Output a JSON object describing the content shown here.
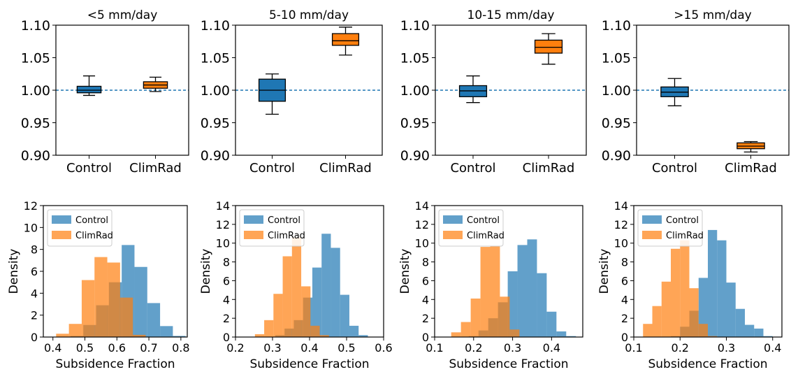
{
  "colors": {
    "control": "#1f77b4",
    "climrad": "#ff7f0e",
    "control_hist": "#1f77b4",
    "climrad_hist": "#ff7f0e",
    "refline": "#1f77b4",
    "median": "#000000"
  },
  "chart_data": [
    {
      "type": "box",
      "title": "<5 mm/day",
      "categories": [
        "Control",
        "ClimRad"
      ],
      "ylim": [
        0.9,
        1.1
      ],
      "yticks": [
        "0.90",
        "0.95",
        "1.00",
        "1.05",
        "1.10"
      ],
      "ytick_values": [
        0.9,
        0.95,
        1.0,
        1.05,
        1.1
      ],
      "refline": 1.0,
      "boxes": [
        {
          "name": "Control",
          "whislo": 0.992,
          "q1": 0.996,
          "med": 1.0,
          "q3": 1.006,
          "whishi": 1.022
        },
        {
          "name": "ClimRad",
          "whislo": 0.998,
          "q1": 1.003,
          "med": 1.008,
          "q3": 1.013,
          "whishi": 1.02
        }
      ]
    },
    {
      "type": "box",
      "title": "5-10 mm/day",
      "categories": [
        "Control",
        "ClimRad"
      ],
      "ylim": [
        0.9,
        1.1
      ],
      "yticks": [
        "0.90",
        "0.95",
        "1.00",
        "1.05",
        "1.10"
      ],
      "ytick_values": [
        0.9,
        0.95,
        1.0,
        1.05,
        1.1
      ],
      "refline": 1.0,
      "boxes": [
        {
          "name": "Control",
          "whislo": 0.963,
          "q1": 0.983,
          "med": 1.0,
          "q3": 1.017,
          "whishi": 1.025
        },
        {
          "name": "ClimRad",
          "whislo": 1.054,
          "q1": 1.069,
          "med": 1.076,
          "q3": 1.087,
          "whishi": 1.097
        }
      ]
    },
    {
      "type": "box",
      "title": "10-15 mm/day",
      "categories": [
        "Control",
        "ClimRad"
      ],
      "ylim": [
        0.9,
        1.1
      ],
      "yticks": [
        "0.90",
        "0.95",
        "1.00",
        "1.05",
        "1.10"
      ],
      "ytick_values": [
        0.9,
        0.95,
        1.0,
        1.05,
        1.1
      ],
      "refline": 1.0,
      "boxes": [
        {
          "name": "Control",
          "whislo": 0.981,
          "q1": 0.99,
          "med": 0.999,
          "q3": 1.007,
          "whishi": 1.022
        },
        {
          "name": "ClimRad",
          "whislo": 1.04,
          "q1": 1.057,
          "med": 1.066,
          "q3": 1.077,
          "whishi": 1.087
        }
      ]
    },
    {
      "type": "box",
      "title": ">15 mm/day",
      "categories": [
        "Control",
        "ClimRad"
      ],
      "ylim": [
        0.9,
        1.1
      ],
      "yticks": [
        "0.90",
        "0.95",
        "1.00",
        "1.05",
        "1.10"
      ],
      "ytick_values": [
        0.9,
        0.95,
        1.0,
        1.05,
        1.1
      ],
      "refline": 1.0,
      "boxes": [
        {
          "name": "Control",
          "whislo": 0.976,
          "q1": 0.99,
          "med": 0.997,
          "q3": 1.005,
          "whishi": 1.018
        },
        {
          "name": "ClimRad",
          "whislo": 0.905,
          "q1": 0.91,
          "med": 0.914,
          "q3": 0.919,
          "whishi": 0.921
        }
      ]
    },
    {
      "type": "histogram",
      "xlabel": "Subsidence Fraction",
      "ylabel": "Density",
      "xlim": [
        0.37,
        0.82
      ],
      "ylim": [
        0,
        12
      ],
      "xticks": [
        "0.4",
        "0.5",
        "0.6",
        "0.7",
        "0.8"
      ],
      "xtick_values": [
        0.4,
        0.5,
        0.6,
        0.7,
        0.8
      ],
      "yticks": [
        "0",
        "2",
        "4",
        "6",
        "8",
        "10",
        "12"
      ],
      "ytick_values": [
        0,
        2,
        4,
        6,
        8,
        10,
        12
      ],
      "legend": "upper-left",
      "series": [
        {
          "name": "Control",
          "bins": [
            0.475,
            0.515,
            0.555,
            0.595,
            0.635,
            0.675,
            0.715,
            0.755,
            0.795
          ],
          "values": [
            0.1,
            1.1,
            2.9,
            5.0,
            8.4,
            6.4,
            3.1,
            1.0,
            0.1
          ]
        },
        {
          "name": "ClimRad",
          "bins": [
            0.43,
            0.47,
            0.51,
            0.55,
            0.59,
            0.63,
            0.67,
            0.71
          ],
          "values": [
            0.3,
            1.2,
            5.2,
            7.3,
            6.8,
            3.6,
            0.2,
            0.0
          ]
        }
      ]
    },
    {
      "type": "histogram",
      "xlabel": "Subsidence Fraction",
      "ylabel": "Density",
      "xlim": [
        0.2,
        0.6
      ],
      "ylim": [
        0,
        14
      ],
      "xticks": [
        "0.2",
        "0.3",
        "0.4",
        "0.5",
        "0.6"
      ],
      "xtick_values": [
        0.2,
        0.3,
        0.4,
        0.5,
        0.6
      ],
      "yticks": [
        "0",
        "2",
        "4",
        "6",
        "8",
        "10",
        "12",
        "14"
      ],
      "ytick_values": [
        0,
        2,
        4,
        6,
        8,
        10,
        12,
        14
      ],
      "legend": "upper-left",
      "series": [
        {
          "name": "Control",
          "bins": [
            0.32,
            0.345,
            0.37,
            0.395,
            0.42,
            0.445,
            0.47,
            0.495,
            0.52,
            0.545
          ],
          "values": [
            0.2,
            0.9,
            1.8,
            4.2,
            7.4,
            11.0,
            9.5,
            4.5,
            1.2,
            0.2
          ]
        },
        {
          "name": "ClimRad",
          "bins": [
            0.265,
            0.29,
            0.315,
            0.34,
            0.365,
            0.39,
            0.415,
            0.44,
            0.465
          ],
          "values": [
            0.3,
            1.8,
            4.6,
            8.6,
            10.6,
            5.4,
            1.2,
            0.2,
            0.0
          ]
        }
      ]
    },
    {
      "type": "histogram",
      "xlabel": "Subsidence Fraction",
      "ylabel": "Density",
      "xlim": [
        0.1,
        0.48
      ],
      "ylim": [
        0,
        14
      ],
      "xticks": [
        "0.1",
        "0.2",
        "0.3",
        "0.4"
      ],
      "xtick_values": [
        0.1,
        0.2,
        0.3,
        0.4
      ],
      "yticks": [
        "0",
        "2",
        "4",
        "6",
        "8",
        "10",
        "12",
        "14"
      ],
      "ytick_values": [
        0,
        2,
        4,
        6,
        8,
        10,
        12,
        14
      ],
      "legend": "upper-left",
      "series": [
        {
          "name": "Control",
          "bins": [
            0.2,
            0.225,
            0.25,
            0.275,
            0.3,
            0.325,
            0.35,
            0.375,
            0.4,
            0.425,
            0.45
          ],
          "values": [
            0.1,
            0.7,
            2.0,
            3.7,
            7.0,
            9.8,
            10.4,
            6.8,
            2.7,
            0.6,
            0.1
          ]
        },
        {
          "name": "ClimRad",
          "bins": [
            0.155,
            0.18,
            0.205,
            0.23,
            0.255,
            0.28,
            0.305,
            0.33
          ],
          "values": [
            0.5,
            1.6,
            4.1,
            9.6,
            9.7,
            4.3,
            0.8,
            0.0
          ]
        }
      ]
    },
    {
      "type": "histogram",
      "xlabel": "Subsidence Fraction",
      "ylabel": "Density",
      "xlim": [
        0.1,
        0.42
      ],
      "ylim": [
        0,
        14
      ],
      "xticks": [
        "0.1",
        "0.2",
        "0.3",
        "0.4"
      ],
      "xtick_values": [
        0.1,
        0.2,
        0.3,
        0.4
      ],
      "yticks": [
        "0",
        "2",
        "4",
        "6",
        "8",
        "10",
        "12",
        "14"
      ],
      "ytick_values": [
        0,
        2,
        4,
        6,
        8,
        10,
        12,
        14
      ],
      "legend": "upper-left",
      "series": [
        {
          "name": "Control",
          "bins": [
            0.19,
            0.21,
            0.23,
            0.25,
            0.27,
            0.29,
            0.31,
            0.33,
            0.35,
            0.37,
            0.39
          ],
          "values": [
            0.1,
            1.1,
            2.8,
            6.3,
            11.4,
            10.3,
            5.8,
            3.0,
            1.3,
            0.9,
            0.1
          ]
        },
        {
          "name": "ClimRad",
          "bins": [
            0.13,
            0.15,
            0.17,
            0.19,
            0.21,
            0.23,
            0.25,
            0.27,
            0.29
          ],
          "values": [
            1.4,
            3.3,
            5.9,
            9.4,
            10.3,
            5.2,
            1.4,
            0.1,
            0.0
          ]
        }
      ]
    }
  ]
}
